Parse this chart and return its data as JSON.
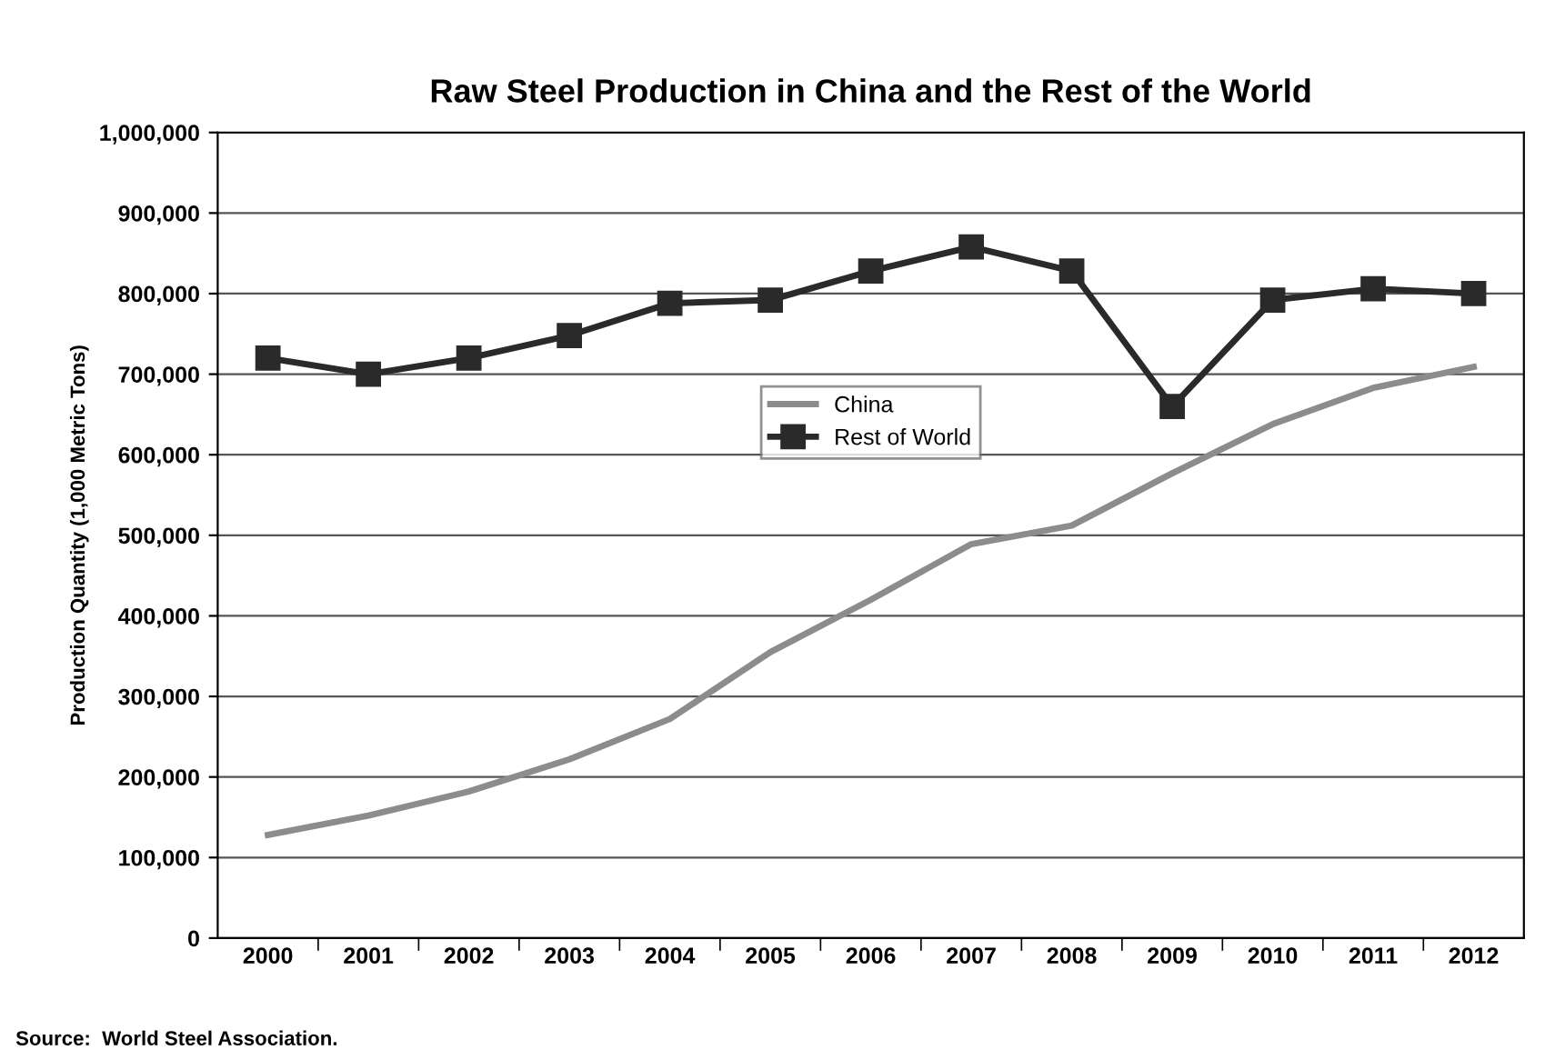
{
  "chart_data": {
    "type": "line",
    "title": "Raw Steel Production in China and the Rest of the World",
    "ylabel": "Production Quantity (1,000 Metric Tons)",
    "categories": [
      "2000",
      "2001",
      "2002",
      "2003",
      "2004",
      "2005",
      "2006",
      "2007",
      "2008",
      "2009",
      "2010",
      "2011",
      "2012"
    ],
    "series": [
      {
        "name": "China",
        "color": "#8c8c8c",
        "marker": "none",
        "values": [
          128000,
          152000,
          182000,
          222000,
          272000,
          355000,
          420000,
          489000,
          512000,
          577000,
          638000,
          683000,
          709000
        ]
      },
      {
        "name": "Rest of World",
        "color": "#2a2a2a",
        "marker": "square",
        "values": [
          720000,
          700000,
          720000,
          748000,
          788000,
          792000,
          828000,
          858000,
          828000,
          660000,
          792000,
          806000,
          800000
        ]
      }
    ],
    "ylim": [
      0,
      1000000
    ],
    "yticks": [
      {
        "value": 0,
        "label": "0"
      },
      {
        "value": 100000,
        "label": "100,000"
      },
      {
        "value": 200000,
        "label": "200,000"
      },
      {
        "value": 300000,
        "label": "300,000"
      },
      {
        "value": 400000,
        "label": "400,000"
      },
      {
        "value": 500000,
        "label": "500,000"
      },
      {
        "value": 600000,
        "label": "600,000"
      },
      {
        "value": 700000,
        "label": "700,000"
      },
      {
        "value": 800000,
        "label": "800,000"
      },
      {
        "value": 900000,
        "label": "900,000"
      },
      {
        "value": 1000000,
        "label": "1,000,000"
      }
    ],
    "grid": "y",
    "legend": "center",
    "line_style": "solid",
    "annotations": [
      "Source:  World Steel Association."
    ]
  }
}
